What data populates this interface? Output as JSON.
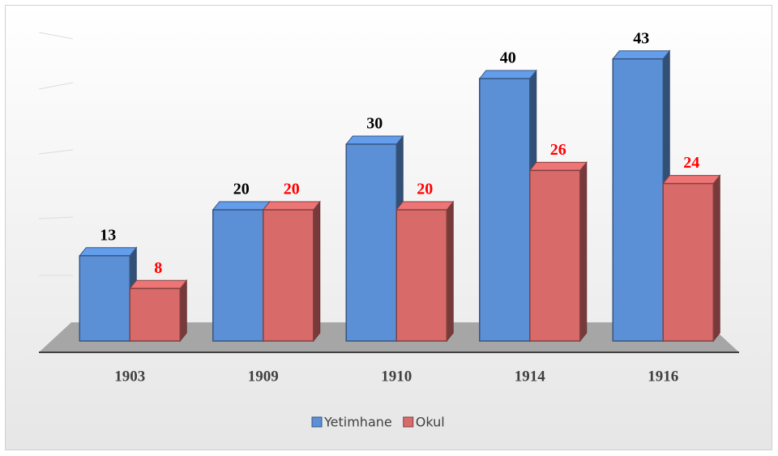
{
  "chart_data": {
    "type": "bar3d",
    "categories": [
      "1903",
      "1909",
      "1910",
      "1914",
      "1916"
    ],
    "series": [
      {
        "name": "Yetimhane",
        "color": "#5b8fd6",
        "label_color": "#000000",
        "values": [
          13,
          20,
          30,
          40,
          43
        ]
      },
      {
        "name": "Okul",
        "color": "#d86a6a",
        "label_color": "#ff0000",
        "values": [
          8,
          20,
          20,
          26,
          24
        ]
      }
    ],
    "legend": "bottom"
  }
}
